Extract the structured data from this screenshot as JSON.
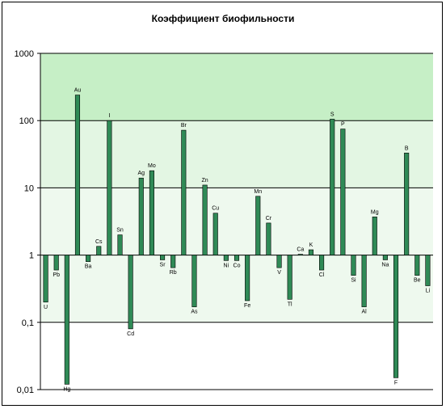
{
  "chart_data": {
    "type": "bar",
    "title": "Коэффициент биофильности",
    "scale": "log",
    "baseline": 1,
    "ylim": [
      0.01,
      1000
    ],
    "yticks": [
      0.01,
      0.1,
      1,
      10,
      100,
      1000
    ],
    "ytick_labels": [
      "0,01",
      "0,1",
      "1",
      "10",
      "100",
      "1000"
    ],
    "grid": true,
    "colors": {
      "bar": "#2f8a56",
      "bar_border": "#000000",
      "band_top": "#c6efc6",
      "band_upper": "#e3f6e3",
      "band_mid": "#eef9ee",
      "band_low": "#ffffff"
    },
    "categories": [
      "U",
      "Pb",
      "Hg",
      "Au",
      "Ba",
      "Cs",
      "I",
      "Sn",
      "Cd",
      "Ag",
      "Mo",
      "Sr",
      "Rb",
      "Br",
      "As",
      "Zn",
      "Cu",
      "Ni",
      "Co",
      "Fe",
      "Mn",
      "Cr",
      "V",
      "Tl",
      "Ca",
      "K",
      "Cl",
      "S",
      "P",
      "Si",
      "Al",
      "Mg",
      "Na",
      "F",
      "B",
      "Be",
      "Li"
    ],
    "values": [
      0.2,
      0.6,
      0.012,
      240,
      0.8,
      1.35,
      100,
      2,
      0.08,
      14,
      18,
      0.85,
      0.65,
      72,
      0.17,
      11,
      4.2,
      0.83,
      0.83,
      0.21,
      7.5,
      3,
      0.65,
      0.22,
      1.03,
      1.2,
      0.6,
      105,
      75,
      0.5,
      0.17,
      3.7,
      0.85,
      0.015,
      33,
      0.5,
      0.35
    ]
  }
}
